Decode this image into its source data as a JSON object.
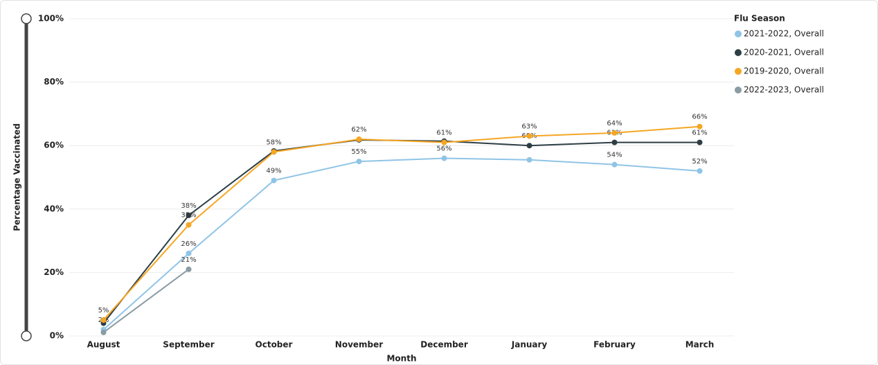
{
  "chart_data": {
    "type": "line",
    "x_label": "Month",
    "y_label": "Percentage Vaccinated",
    "legend_title": "Flu Season",
    "categories": [
      "August",
      "September",
      "October",
      "November",
      "December",
      "January",
      "February",
      "March"
    ],
    "series": [
      {
        "name": "2021-2022, Overall",
        "color": "#8fc4e6",
        "values": [
          2,
          26,
          49,
          55,
          56,
          55.5,
          54,
          52
        ],
        "value_labels": [
          "2%",
          "26%",
          "49%",
          "55%",
          "56%",
          null,
          "54%",
          "52%"
        ]
      },
      {
        "name": "2020-2021, Overall",
        "color": "#2d3e45",
        "values": [
          4,
          38,
          58.3,
          61.8,
          61.4,
          60,
          61,
          61
        ],
        "value_labels": [
          null,
          "38%",
          null,
          null,
          null,
          "60%",
          "61%",
          "61%"
        ]
      },
      {
        "name": "2019-2020, Overall",
        "color": "#f5a623",
        "values": [
          5,
          35,
          58,
          62,
          61,
          63,
          64,
          66
        ],
        "value_labels": [
          "5%",
          "35%",
          "58%",
          "62%",
          "61%",
          "63%",
          "64%",
          "66%"
        ]
      },
      {
        "name": "2022-2023, Overall",
        "color": "#8a9ba3",
        "values": [
          1.1,
          21,
          null,
          null,
          null,
          null,
          null,
          null
        ],
        "value_labels": [
          null,
          "21%",
          null,
          null,
          null,
          null,
          null,
          null
        ]
      }
    ],
    "ylim": [
      0,
      100
    ],
    "yticks": [
      {
        "value": 0,
        "label": "0%"
      },
      {
        "value": 20,
        "label": "20%"
      },
      {
        "value": 40,
        "label": "40%"
      },
      {
        "value": 60,
        "label": "60%"
      },
      {
        "value": 80,
        "label": "80%"
      },
      {
        "value": 100,
        "label": "100%"
      }
    ],
    "grid": true,
    "legend": "upper right"
  }
}
